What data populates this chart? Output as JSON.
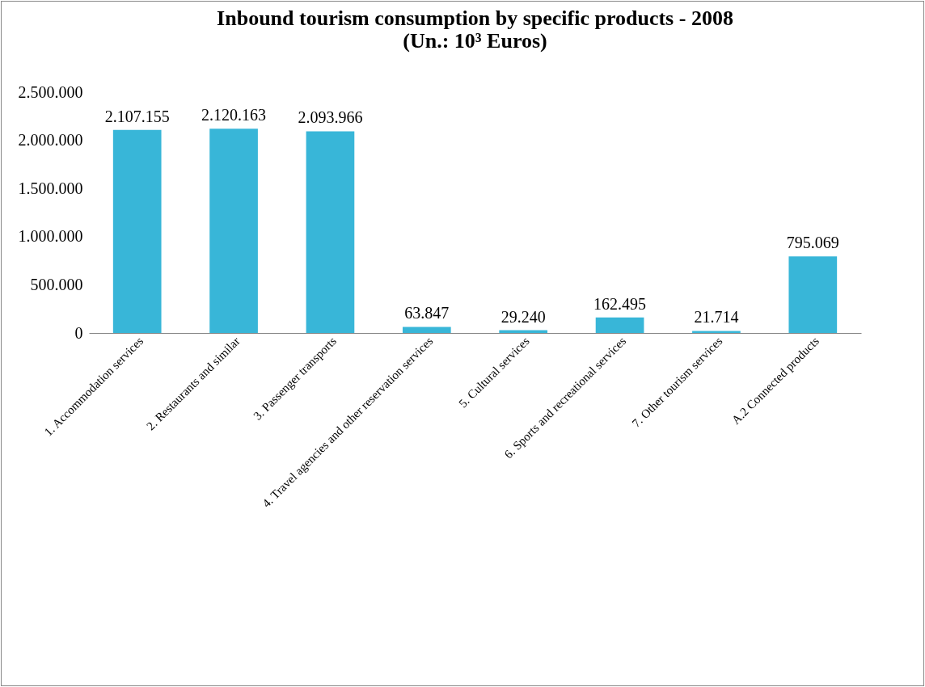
{
  "chart_data": {
    "type": "bar",
    "title": "Inbound tourism consumption by specific  products - 2008",
    "subtitle": "(Un.: 10³ Euros)",
    "categories": [
      "1. Accommodation services",
      "2. Restaurants and similar",
      "3. Passenger transports",
      "4. Travel agencies and other reservation services",
      "5. Cultural services",
      "6. Sports and recreational services",
      "7. Other tourism services",
      "A.2 Connected products"
    ],
    "values": [
      2107155,
      2120163,
      2093966,
      63847,
      29240,
      162495,
      21714,
      795069
    ],
    "color": "#38b6d8",
    "ylim": [
      0,
      2500000
    ],
    "yticks": [
      {
        "value": 0,
        "label": "0"
      },
      {
        "value": 500000,
        "label": "500.000"
      },
      {
        "value": 1000000,
        "label": "1.000.000"
      },
      {
        "value": 1500000,
        "label": "1.500.000"
      },
      {
        "value": 2000000,
        "label": "2.000.000"
      },
      {
        "value": 2500000,
        "label": "2.500.000"
      }
    ],
    "value_labels": [
      "2.107.155",
      "2.120.163",
      "2.093.966",
      "63.847",
      "29.240",
      "162.495",
      "21.714",
      "795.069"
    ],
    "grid": false
  }
}
